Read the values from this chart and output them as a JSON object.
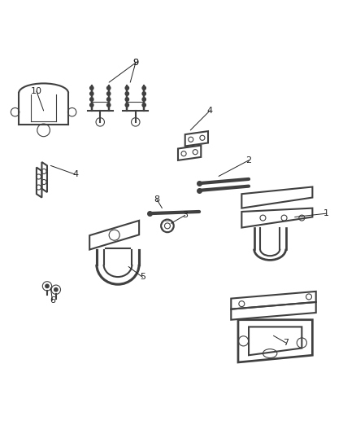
{
  "bg_color": "#ffffff",
  "line_color": "#404040",
  "label_color": "#222222",
  "figsize": [
    4.38,
    5.33
  ],
  "dpi": 100
}
